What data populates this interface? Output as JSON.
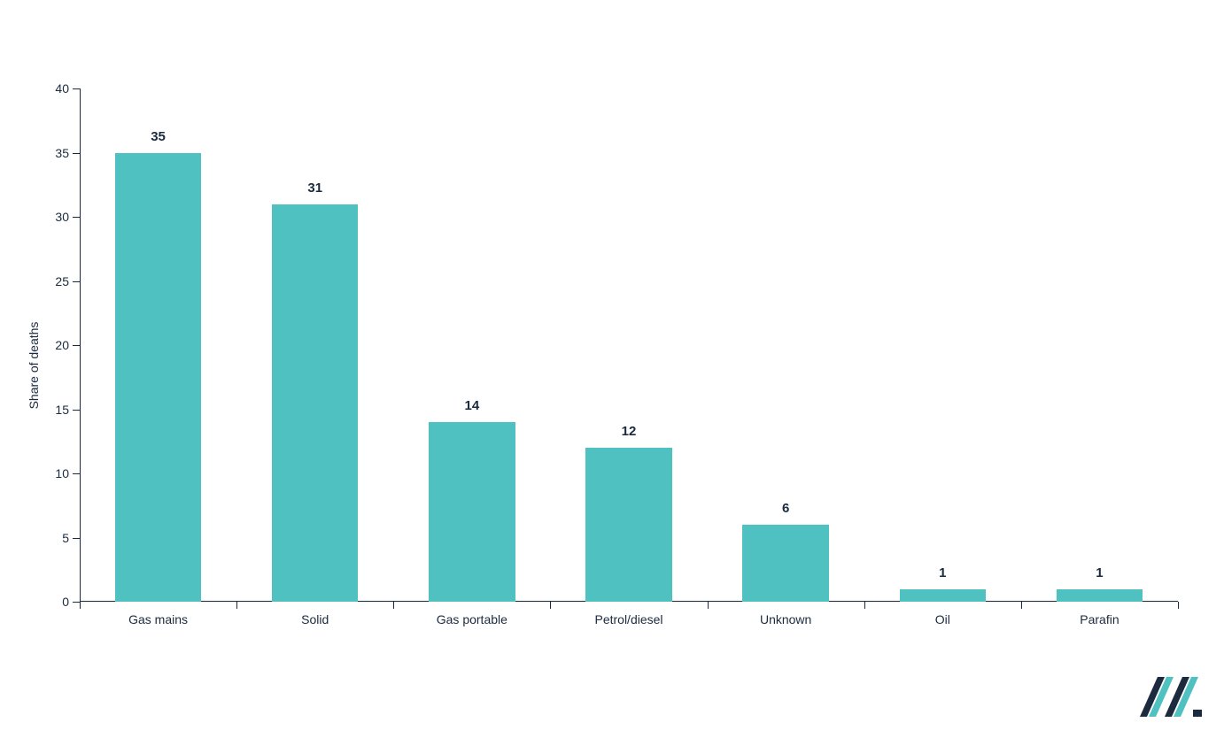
{
  "chart": {
    "type": "bar",
    "categories": [
      "Gas mains",
      "Solid",
      "Gas portable",
      "Petrol/diesel",
      "Unknown",
      "Oil",
      "Parafin"
    ],
    "values": [
      35,
      31,
      14,
      12,
      6,
      1,
      1
    ],
    "bar_color": "#4fc1c0",
    "axis_color": "#1b2a3f",
    "text_color": "#1b2a3f",
    "ylabel": "Share of deaths",
    "ylim_min": 0,
    "ylim_max": 40,
    "ytick_step": 5,
    "tick_fontsize": 14,
    "label_fontsize": 14,
    "value_label_fontsize": 15,
    "ylabel_fontsize": 14,
    "bar_width_ratio": 0.55,
    "background_color": "#ffffff",
    "logo_colors": {
      "dark": "#1b2a3f",
      "teal": "#4fc1c0"
    }
  }
}
